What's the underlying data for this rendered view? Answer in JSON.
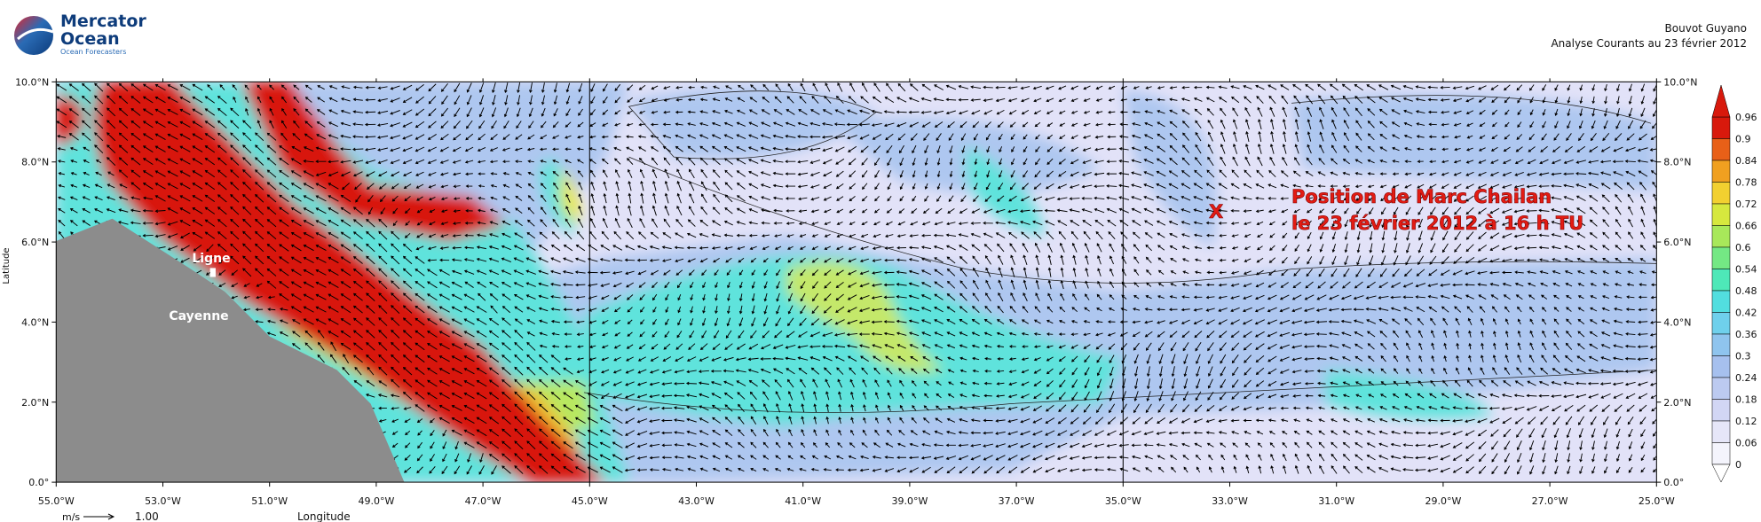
{
  "header": {
    "logo_line1": "Mercator",
    "logo_line2": "Ocean",
    "logo_tagline": "Ocean Forecasters",
    "title": "Bouvot Guyano",
    "subtitle": "Analyse Courants au 23 février 2012"
  },
  "map": {
    "x_ticks": [
      "55.0°W",
      "53.0°W",
      "51.0°W",
      "49.0°W",
      "47.0°W",
      "45.0°W",
      "43.0°W",
      "41.0°W",
      "39.0°W",
      "37.0°W",
      "35.0°W",
      "33.0°W",
      "31.0°W",
      "29.0°W",
      "27.0°W",
      "25.0°W"
    ],
    "y_ticks": [
      "10.0°N",
      "8.0°N",
      "6.0°N",
      "4.0°N",
      "2.0°N",
      "0.0°"
    ],
    "x_label": "Longitude",
    "y_label": "Latitude",
    "places": [
      {
        "label": "Ligne"
      },
      {
        "label": "Cayenne"
      }
    ],
    "annotation": {
      "marker": "X",
      "lines": [
        "Position de Marc Chailan",
        "le 23 février 2012 à 16 h TU"
      ]
    },
    "vector_key": {
      "unit": "m/s",
      "label": "1.00"
    }
  },
  "colorbar": {
    "labels": [
      "0.96",
      "0.9",
      "0.84",
      "0.78",
      "0.72",
      "0.66",
      "0.6",
      "0.54",
      "0.48",
      "0.42",
      "0.36",
      "0.3",
      "0.24",
      "0.18",
      "0.12",
      "0.06",
      "0"
    ]
  }
}
